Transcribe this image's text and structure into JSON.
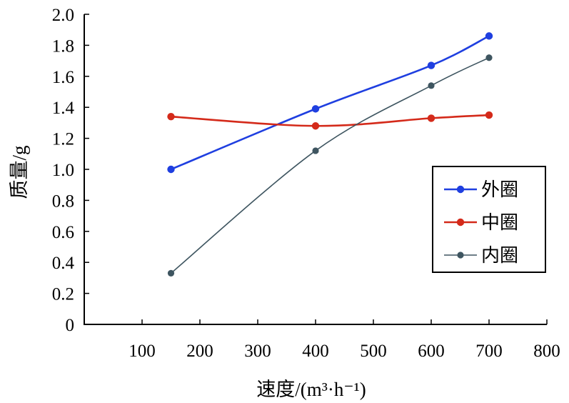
{
  "chart_data": {
    "type": "line",
    "xlabel": "速度/(m³·h⁻¹)",
    "ylabel": "质量/g",
    "xlim": [
      0,
      800
    ],
    "ylim": [
      0,
      2.0
    ],
    "xticks": [
      100,
      200,
      300,
      400,
      500,
      600,
      700,
      800
    ],
    "yticks": [
      0,
      0.2,
      0.4,
      0.6,
      0.8,
      1.0,
      1.2,
      1.4,
      1.6,
      1.8,
      2.0
    ],
    "xtick_labels": [
      "100",
      "200",
      "300",
      "400",
      "500",
      "600",
      "700",
      "800"
    ],
    "ytick_labels": [
      "0",
      "0.2",
      "0.4",
      "0.6",
      "0.8",
      "1.0",
      "1.2",
      "1.4",
      "1.6",
      "1.8",
      "2.0"
    ],
    "grid": false,
    "legend_position": "right",
    "x": [
      150,
      400,
      600,
      700
    ],
    "series": [
      {
        "name": "外圈",
        "values": [
          1.0,
          1.39,
          1.67,
          1.86
        ],
        "color": "#1f3fe0"
      },
      {
        "name": "中圈",
        "values": [
          1.34,
          1.28,
          1.33,
          1.35
        ],
        "color": "#d42a1a"
      },
      {
        "name": "内圈",
        "values": [
          0.33,
          1.12,
          1.54,
          1.72
        ],
        "color": "#3e5560"
      }
    ]
  }
}
